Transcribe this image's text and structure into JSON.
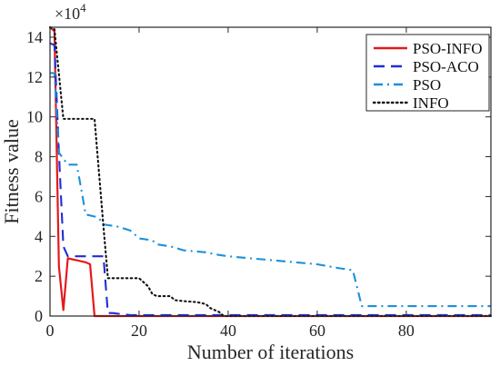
{
  "chart_data": {
    "type": "line",
    "title": "",
    "xlabel": "Number of iterations",
    "ylabel": "Fitness value",
    "xlim": [
      0,
      99
    ],
    "ylim": [
      0,
      145000
    ],
    "y_multiplier_text": "×10⁴",
    "y_exponent_base": "×10",
    "y_exponent_power": "4",
    "x_ticks": [
      0,
      20,
      40,
      60,
      80
    ],
    "y_ticks": [
      0,
      20000,
      40000,
      60000,
      80000,
      100000,
      120000,
      140000
    ],
    "x_tick_labels": [
      "0",
      "20",
      "40",
      "60",
      "80"
    ],
    "y_tick_labels": [
      "0",
      "2",
      "4",
      "6",
      "8",
      "10",
      "12",
      "14"
    ],
    "grid": false,
    "legend_position": "top-right",
    "legend": [
      "PSO-INFO",
      "PSO-ACO",
      "PSO",
      "INFO"
    ],
    "series": [
      {
        "name": "PSO-INFO",
        "color": "#e31a1c",
        "style": "solid",
        "points": [
          [
            0,
            145000
          ],
          [
            1,
            143000
          ],
          [
            2,
            25000
          ],
          [
            3,
            3000
          ],
          [
            4,
            29000
          ],
          [
            5,
            28500
          ],
          [
            6,
            28000
          ],
          [
            7,
            27500
          ],
          [
            8,
            27000
          ],
          [
            9,
            26000
          ],
          [
            10,
            0
          ],
          [
            99,
            0
          ]
        ]
      },
      {
        "name": "PSO-ACO",
        "color": "#1f2fd4",
        "style": "dashed",
        "points": [
          [
            0,
            137000
          ],
          [
            1,
            136000
          ],
          [
            2,
            82000
          ],
          [
            3,
            35000
          ],
          [
            4,
            30000
          ],
          [
            5,
            30000
          ],
          [
            12,
            30000
          ],
          [
            13,
            1500
          ],
          [
            14,
            1500
          ],
          [
            18,
            500
          ],
          [
            99,
            500
          ]
        ]
      },
      {
        "name": "PSO",
        "color": "#1e90d8",
        "style": "dashdot",
        "points": [
          [
            0,
            122000
          ],
          [
            1,
            122000
          ],
          [
            2,
            82000
          ],
          [
            3,
            79000
          ],
          [
            4,
            76000
          ],
          [
            6,
            76000
          ],
          [
            7,
            64000
          ],
          [
            8,
            51000
          ],
          [
            10,
            50000
          ],
          [
            11,
            49000
          ],
          [
            12,
            46000
          ],
          [
            15,
            45000
          ],
          [
            18,
            43000
          ],
          [
            20,
            39000
          ],
          [
            23,
            38000
          ],
          [
            24,
            36000
          ],
          [
            27,
            35000
          ],
          [
            30,
            33000
          ],
          [
            35,
            32000
          ],
          [
            37,
            31000
          ],
          [
            40,
            30000
          ],
          [
            45,
            29000
          ],
          [
            50,
            28000
          ],
          [
            55,
            27000
          ],
          [
            60,
            26000
          ],
          [
            65,
            24000
          ],
          [
            68,
            23000
          ],
          [
            70,
            5000
          ],
          [
            99,
            5000
          ]
        ]
      },
      {
        "name": "INFO",
        "color": "#111111",
        "style": "dotted",
        "points": [
          [
            0,
            145000
          ],
          [
            1,
            144000
          ],
          [
            3,
            99000
          ],
          [
            10,
            99000
          ],
          [
            12,
            45000
          ],
          [
            13,
            19000
          ],
          [
            20,
            19000
          ],
          [
            22,
            15000
          ],
          [
            23,
            11000
          ],
          [
            24,
            10000
          ],
          [
            27,
            10000
          ],
          [
            28,
            8000
          ],
          [
            30,
            7500
          ],
          [
            33,
            7000
          ],
          [
            35,
            6000
          ],
          [
            36,
            4000
          ],
          [
            37,
            3000
          ],
          [
            38,
            2000
          ],
          [
            39,
            0
          ],
          [
            99,
            0
          ]
        ]
      }
    ]
  }
}
